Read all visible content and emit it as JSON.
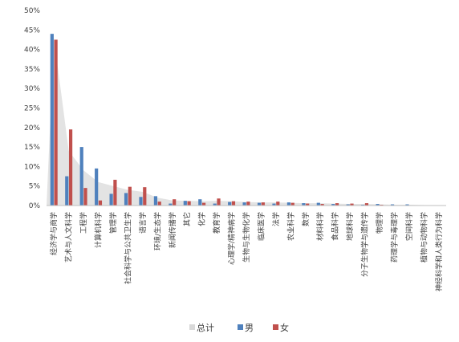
{
  "chart_data": {
    "type": "bar",
    "ylim": [
      0,
      50
    ],
    "yticks": [
      "0%",
      "5%",
      "10%",
      "15%",
      "20%",
      "25%",
      "30%",
      "35%",
      "40%",
      "45%",
      "50%"
    ],
    "grid": false,
    "legend_position": "bottom",
    "categories": [
      "经济学与商学",
      "艺术与人文科学",
      "工程学",
      "计算机科学",
      "管理学",
      "社会科学与公共卫生学",
      "语言学",
      "环境/生态学",
      "新闻传播学",
      "其它",
      "化学",
      "教育学",
      "心理学/精神病学",
      "生物与生物化学",
      "临床医学",
      "法学",
      "农业科学",
      "数学",
      "材料科学",
      "食品科学",
      "地球科学",
      "分子生物学与遗传学",
      "物理学",
      "药理学与毒理学",
      "空间科学",
      "植物与动物科学",
      "神经科学和人类行为科学"
    ],
    "series": [
      {
        "name": "总计",
        "color": "#d9d9d9",
        "values": [
          43,
          14,
          9,
          6,
          5,
          4,
          3.5,
          2,
          1.3,
          1.2,
          1.1,
          1.2,
          1.1,
          0.9,
          0.8,
          0.8,
          0.7,
          0.6,
          0.6,
          0.5,
          0.4,
          0.4,
          0.3,
          0.2,
          0.2,
          0.1,
          0.05
        ]
      },
      {
        "name": "男",
        "color": "#4f81bd",
        "values": [
          44,
          7.5,
          15,
          9.5,
          3,
          3.2,
          2.2,
          2.4,
          0.5,
          1.2,
          1.6,
          0.5,
          0.9,
          0.8,
          0.7,
          0.5,
          0.8,
          0.6,
          0.7,
          0.4,
          0.3,
          0.2,
          0.4,
          0.3,
          0.3,
          0.05,
          0.05
        ]
      },
      {
        "name": "女",
        "color": "#c0504d",
        "values": [
          42.5,
          19.5,
          4.5,
          1.3,
          6.6,
          4.8,
          4.7,
          1,
          1.6,
          1.1,
          0.7,
          1.8,
          1.1,
          1,
          0.8,
          1,
          0.7,
          0.5,
          0.4,
          0.6,
          0.5,
          0.6,
          0.2,
          0.1,
          0.1,
          0.05,
          0.05
        ]
      }
    ]
  }
}
